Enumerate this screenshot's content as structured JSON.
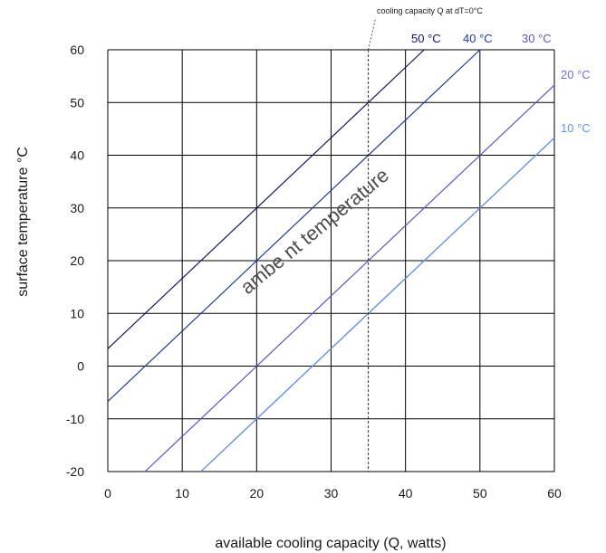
{
  "chart_data": {
    "type": "line",
    "title": "",
    "xlabel": "available cooling capacity (Q, watts)",
    "ylabel": "surface temperature °C",
    "xlim": [
      0,
      60
    ],
    "ylim": [
      -20,
      60
    ],
    "x_ticks": [
      "0",
      "10",
      "20",
      "30",
      "40",
      "50",
      "60"
    ],
    "y_ticks": [
      "60",
      "50",
      "40",
      "30",
      "20",
      "10",
      "0",
      "-10",
      "-20"
    ],
    "grid": true,
    "diagonal_label": "ambe nt temperature",
    "annotation": {
      "text": "cooling capacity Q at dT=0°C",
      "x": 35
    },
    "series": [
      {
        "name": "50 °C",
        "color": "#0b1563",
        "x": [
          0,
          42.5
        ],
        "y": [
          3.3,
          60
        ]
      },
      {
        "name": "40 °C",
        "color": "#1f3a9a",
        "x": [
          0,
          50
        ],
        "y": [
          -6.7,
          60
        ]
      },
      {
        "name": "30 °C",
        "color": "#5753d2",
        "x": [
          5.0,
          60
        ],
        "y": [
          -20,
          53.3
        ]
      },
      {
        "name": "20 °C",
        "color": "#6b6ee8",
        "x": [
          12.5,
          60
        ],
        "y": [
          -20,
          43.3
        ]
      },
      {
        "name": "10 °C",
        "color": "#5f95ea",
        "x": [
          12.5,
          60
        ],
        "y": [
          -20,
          43.3
        ]
      }
    ]
  }
}
